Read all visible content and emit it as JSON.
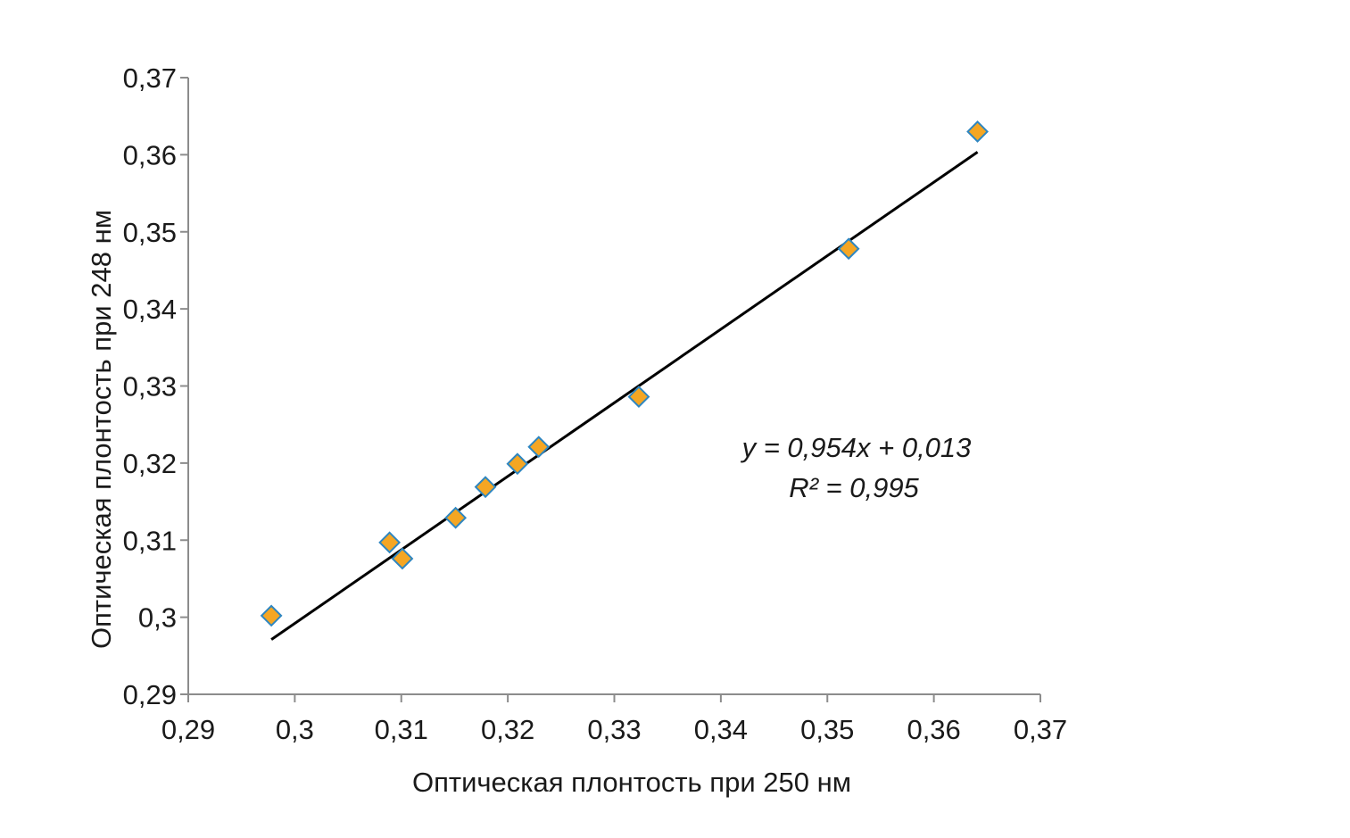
{
  "chart_data": {
    "type": "scatter",
    "title": "",
    "xlabel": "Оптическая плонтость при 250 нм",
    "ylabel": "Оптическая плонтость при 248 нм",
    "xlim": [
      0.29,
      0.37
    ],
    "ylim": [
      0.29,
      0.37
    ],
    "x_ticks": [
      "0,29",
      "0,3",
      "0,31",
      "0,32",
      "0,33",
      "0,34",
      "0,35",
      "0,36",
      "0,37"
    ],
    "y_ticks": [
      "0,29",
      "0,3",
      "0,31",
      "0,32",
      "0,33",
      "0,34",
      "0,35",
      "0,36",
      "0,37"
    ],
    "grid": false,
    "series": [
      {
        "marker": "diamond",
        "points": [
          {
            "x": 0.2978,
            "y": 0.3002
          },
          {
            "x": 0.3089,
            "y": 0.3097
          },
          {
            "x": 0.3101,
            "y": 0.3076
          },
          {
            "x": 0.3151,
            "y": 0.3129
          },
          {
            "x": 0.3179,
            "y": 0.3169
          },
          {
            "x": 0.3209,
            "y": 0.3199
          },
          {
            "x": 0.3229,
            "y": 0.3221
          },
          {
            "x": 0.3323,
            "y": 0.3286
          },
          {
            "x": 0.352,
            "y": 0.3478
          },
          {
            "x": 0.3641,
            "y": 0.363
          }
        ]
      }
    ],
    "trendline": {
      "type": "linear",
      "slope": 0.954,
      "intercept": 0.013,
      "x_range": [
        0.2978,
        0.3641
      ]
    },
    "annotations": [
      "y = 0,954x + 0,013",
      "R² = 0,995"
    ]
  },
  "colors": {
    "marker_fill": "#F5A623",
    "marker_stroke": "#2E86C1",
    "trendline": "#000000",
    "axis": "#8C8C8C",
    "text": "#1A1A1A"
  }
}
